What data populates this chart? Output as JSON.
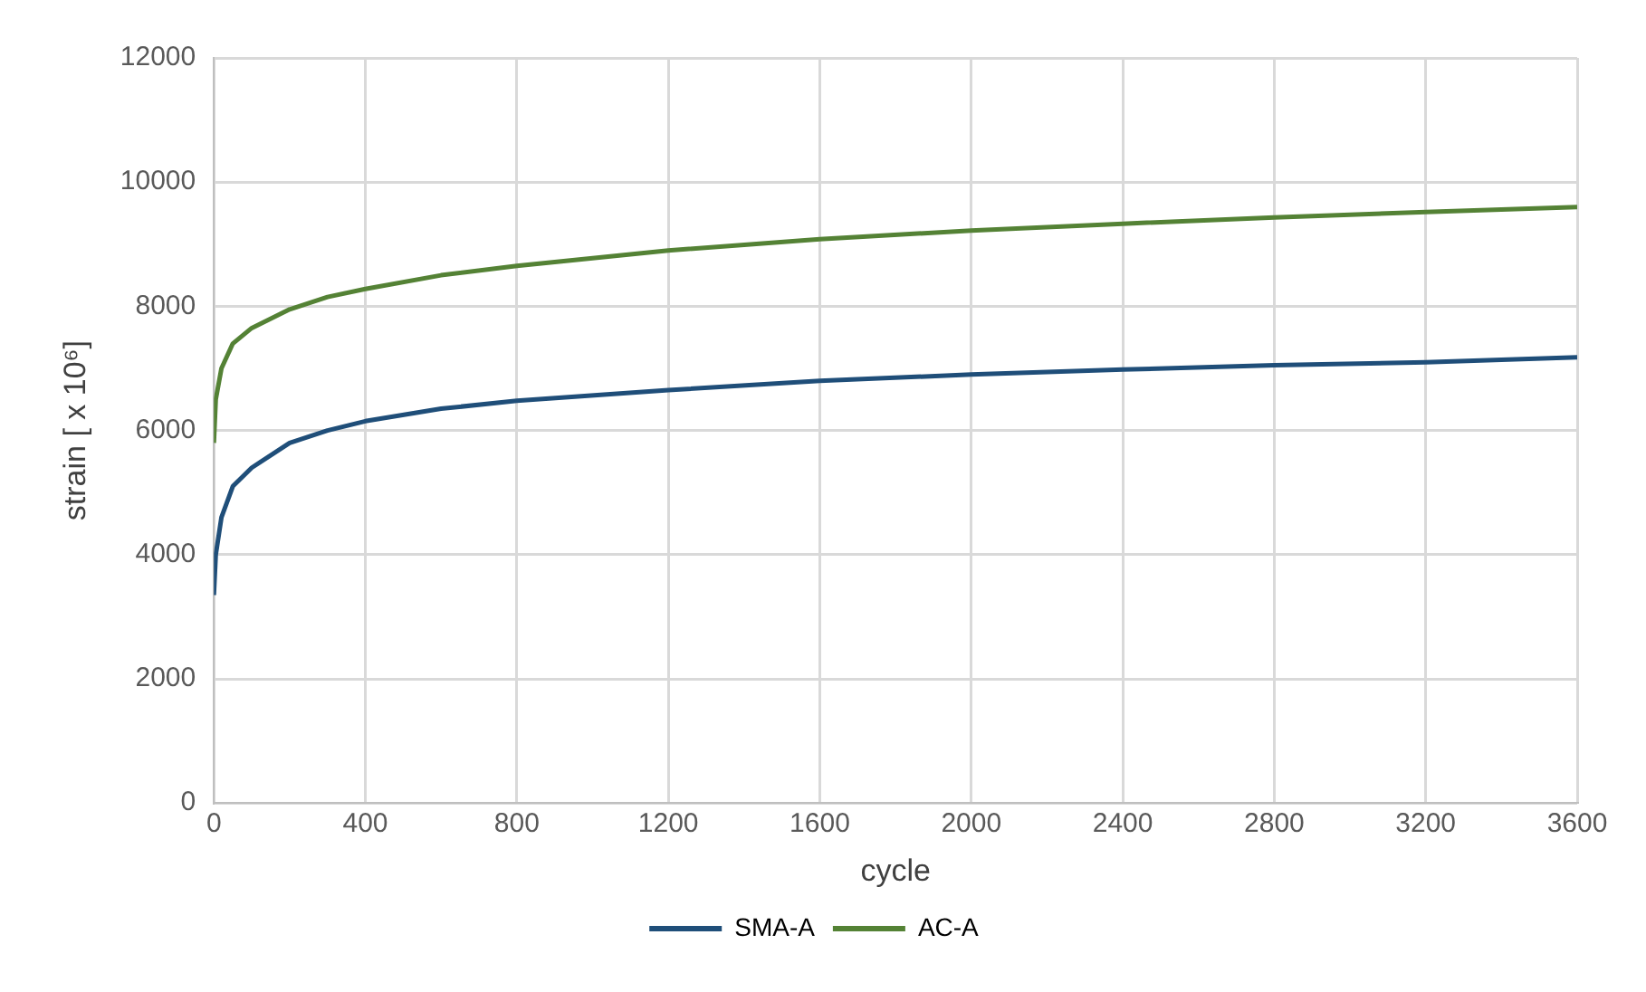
{
  "chart_data": {
    "type": "line",
    "xlabel": "cycle",
    "ylabel": "strain [ x 10⁶]",
    "xlim": [
      0,
      3600
    ],
    "xticks": [
      0,
      400,
      800,
      1200,
      1600,
      2000,
      2400,
      2800,
      3200,
      3600
    ],
    "ylim": [
      0,
      12000
    ],
    "yticks": [
      0,
      2000,
      4000,
      6000,
      8000,
      10000,
      12000
    ],
    "grid": true,
    "legend": "bottom",
    "marker": "none",
    "line_style": "solid",
    "series": [
      {
        "name": "SMA-A",
        "color": "#1f4e79",
        "x": [
          0,
          5,
          20,
          50,
          100,
          200,
          300,
          400,
          600,
          800,
          1200,
          1600,
          2000,
          2400,
          2800,
          3200,
          3600
        ],
        "values": [
          3350,
          4000,
          4600,
          5100,
          5400,
          5800,
          6000,
          6150,
          6350,
          6480,
          6650,
          6800,
          6900,
          6980,
          7050,
          7100,
          7180
        ]
      },
      {
        "name": "AC-A",
        "color": "#548235",
        "x": [
          0,
          5,
          20,
          50,
          100,
          200,
          300,
          400,
          600,
          800,
          1200,
          1600,
          2000,
          2400,
          2800,
          3200,
          3600
        ],
        "values": [
          5800,
          6500,
          7000,
          7400,
          7650,
          7950,
          8150,
          8280,
          8500,
          8650,
          8900,
          9080,
          9220,
          9330,
          9430,
          9520,
          9600
        ]
      }
    ]
  }
}
